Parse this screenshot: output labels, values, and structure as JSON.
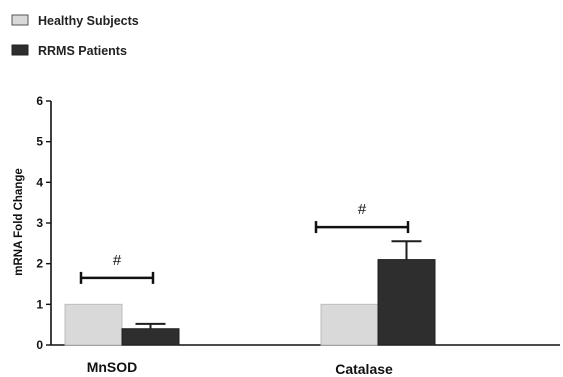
{
  "chart_data": {
    "type": "bar",
    "categories": [
      "MnSOD",
      "Catalase"
    ],
    "series": [
      {
        "name": "Healthy Subjects",
        "values": [
          1.0,
          1.0
        ],
        "errors": [
          0,
          0
        ],
        "color": "#d9d9d9"
      },
      {
        "name": "RRMS Patients",
        "values": [
          0.4,
          2.1
        ],
        "errors": [
          0.12,
          0.45
        ],
        "color": "#2e2e2e"
      }
    ],
    "ylabel": "mRNA Fold Change",
    "ylim": [
      0,
      6
    ],
    "yticks": [
      "0",
      "1",
      "2",
      "3",
      "4",
      "5",
      "6"
    ],
    "legend": "top-left",
    "grid": false,
    "annotations": [
      {
        "text": "#",
        "category": "MnSOD",
        "level": 1.65
      },
      {
        "text": "#",
        "category": "Catalase",
        "level": 2.9
      }
    ]
  }
}
